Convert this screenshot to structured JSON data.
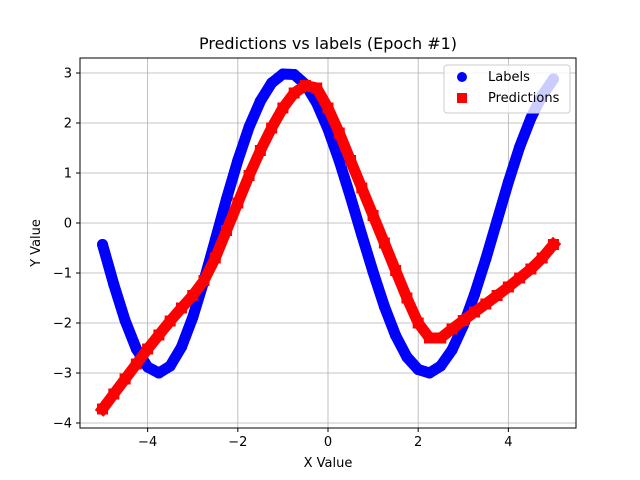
{
  "chart_data": {
    "type": "scatter",
    "title": "Predictions vs labels (Epoch #1)",
    "xlabel": "X Value",
    "ylabel": "Y Value",
    "xlim": [
      -5.5,
      5.5
    ],
    "ylim": [
      -4.1,
      3.3
    ],
    "xticks": [
      -4,
      -2,
      0,
      2,
      4
    ],
    "yticks": [
      -4,
      -3,
      -2,
      -1,
      0,
      1,
      2,
      3
    ],
    "grid": true,
    "legend_position": "top-right",
    "series": [
      {
        "name": "Labels",
        "marker": "circle",
        "color": "#0000ff",
        "x": [
          -5.0,
          -4.75,
          -4.5,
          -4.25,
          -4.0,
          -3.75,
          -3.5,
          -3.25,
          -3.0,
          -2.75,
          -2.5,
          -2.25,
          -2.0,
          -1.75,
          -1.5,
          -1.25,
          -1.0,
          -0.75,
          -0.5,
          -0.25,
          0.0,
          0.25,
          0.5,
          0.75,
          1.0,
          1.25,
          1.5,
          1.75,
          2.0,
          2.25,
          2.5,
          2.75,
          3.0,
          3.25,
          3.5,
          3.75,
          4.0,
          4.25,
          4.5,
          4.75,
          5.0
        ],
        "values": [
          -0.43,
          -1.23,
          -1.95,
          -2.52,
          -2.88,
          -3.0,
          -2.86,
          -2.48,
          -1.89,
          -1.15,
          -0.34,
          0.48,
          1.25,
          1.92,
          2.44,
          2.8,
          2.98,
          2.97,
          2.77,
          2.4,
          1.88,
          1.24,
          0.52,
          -0.24,
          -0.98,
          -1.67,
          -2.25,
          -2.68,
          -2.93,
          -3.0,
          -2.86,
          -2.54,
          -2.05,
          -1.43,
          -0.72,
          0.05,
          0.82,
          1.52,
          2.1,
          2.55,
          2.88
        ]
      },
      {
        "name": "Predictions",
        "marker": "square",
        "color": "#ff0000",
        "x": [
          -5.0,
          -4.75,
          -4.5,
          -4.25,
          -4.0,
          -3.75,
          -3.5,
          -3.25,
          -3.0,
          -2.75,
          -2.5,
          -2.25,
          -2.0,
          -1.75,
          -1.5,
          -1.25,
          -1.0,
          -0.75,
          -0.5,
          -0.25,
          0.0,
          0.25,
          0.5,
          0.75,
          1.0,
          1.25,
          1.5,
          1.75,
          2.0,
          2.25,
          2.5,
          2.75,
          3.0,
          3.25,
          3.5,
          3.75,
          4.0,
          4.25,
          4.5,
          4.75,
          5.0
        ],
        "values": [
          -3.72,
          -3.42,
          -3.12,
          -2.82,
          -2.52,
          -2.24,
          -1.96,
          -1.7,
          -1.45,
          -1.15,
          -0.7,
          -0.15,
          0.4,
          0.95,
          1.45,
          1.9,
          2.3,
          2.6,
          2.75,
          2.7,
          2.3,
          1.8,
          1.25,
          0.7,
          0.15,
          -0.4,
          -0.95,
          -1.5,
          -2.0,
          -2.3,
          -2.3,
          -2.12,
          -1.95,
          -1.78,
          -1.62,
          -1.45,
          -1.28,
          -1.1,
          -0.92,
          -0.7,
          -0.43
        ]
      }
    ]
  }
}
